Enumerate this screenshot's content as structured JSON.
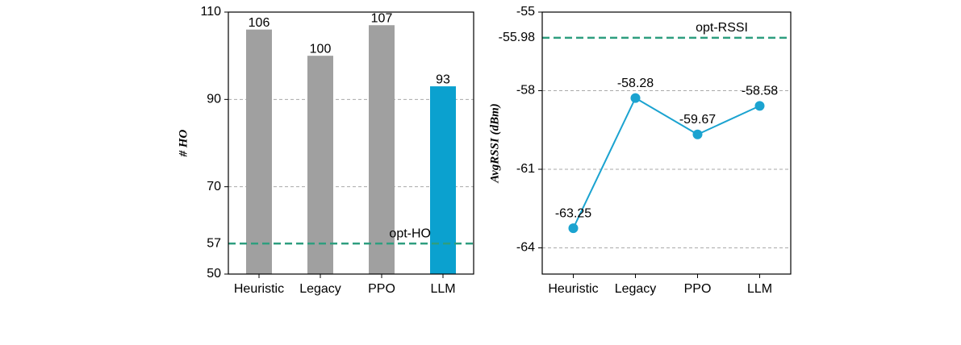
{
  "chart_data": [
    {
      "type": "bar",
      "ylabel": "# HO",
      "categories": [
        "Heuristic",
        "Legacy",
        "PPO",
        "LLM"
      ],
      "values": [
        106,
        100,
        107,
        93
      ],
      "colors": [
        "#a0a0a0",
        "#a0a0a0",
        "#a0a0a0",
        "#0ba1cf"
      ],
      "ylim": [
        50,
        110
      ],
      "yticks": [
        50,
        70,
        90,
        110
      ],
      "grid": true,
      "ref_line": {
        "value": 57,
        "label": "opt-HO",
        "color": "#2e9e7f"
      }
    },
    {
      "type": "line",
      "ylabel": "AvgRSSI (dBm)",
      "categories": [
        "Heuristic",
        "Legacy",
        "PPO",
        "LLM"
      ],
      "values": [
        -63.25,
        -58.28,
        -59.67,
        -58.58
      ],
      "color": "#1ba3d0",
      "ylim": [
        -65,
        -55
      ],
      "yticks": [
        -55,
        -58,
        -61,
        -64
      ],
      "grid": true,
      "ref_line": {
        "value": -55.98,
        "label": "opt-RSSI",
        "color": "#2e9e7f"
      }
    }
  ]
}
